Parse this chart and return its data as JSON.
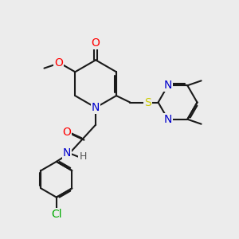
{
  "background_color": "#ececec",
  "bond_color": "#1a1a1a",
  "atom_colors": {
    "O": "#ff0000",
    "N": "#0000cc",
    "S": "#cccc00",
    "Cl": "#00aa00",
    "C": "#1a1a1a",
    "H": "#555555"
  },
  "figsize": [
    3.0,
    3.0
  ],
  "dpi": 100
}
